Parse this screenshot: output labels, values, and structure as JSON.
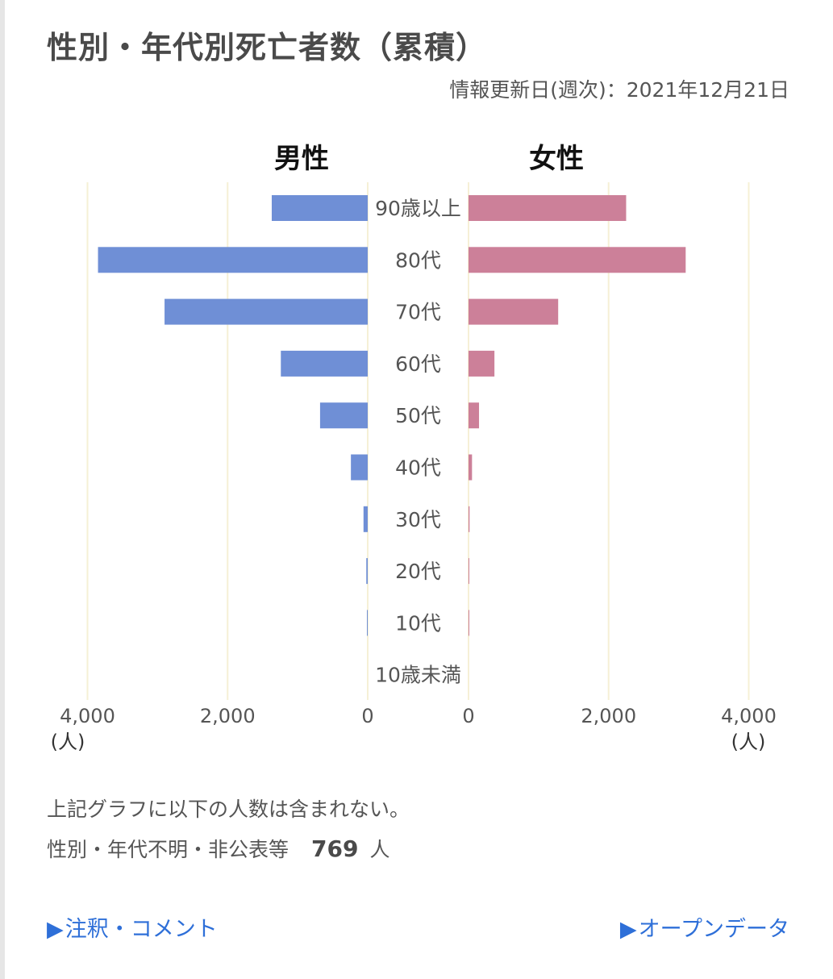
{
  "page": {
    "title": "性別・年代別死亡者数（累積）",
    "updated": "情報更新日(週次)：2021年12月21日"
  },
  "chart_data": {
    "type": "bar",
    "orientation": "horizontal-population-pyramid",
    "categories": [
      "90歳以上",
      "80代",
      "70代",
      "60代",
      "50代",
      "40代",
      "30代",
      "20代",
      "10代",
      "10歳未満"
    ],
    "series": [
      {
        "name": "男性",
        "color": "#6f8fd6",
        "values": [
          1370,
          3850,
          2900,
          1240,
          680,
          240,
          60,
          20,
          5,
          0
        ]
      },
      {
        "name": "女性",
        "color": "#cc8099",
        "values": [
          2250,
          3100,
          1280,
          370,
          150,
          50,
          15,
          10,
          2,
          0
        ]
      }
    ],
    "xlim": [
      0,
      4000
    ],
    "ticks": [
      "4,000",
      "2,000",
      "0"
    ],
    "ticks_right": [
      "0",
      "2,000",
      "4,000"
    ],
    "unit": "(人)",
    "grid_color": "#f6f0d6"
  },
  "notes": {
    "line1": "上記グラフに以下の人数は含まれない。",
    "line2_label": "性別・年代不明・非公表等",
    "line2_count": "769",
    "line2_unit": "人"
  },
  "links": {
    "arrow": "▶",
    "comments": "注釈・コメント",
    "opendata": "オープンデータ"
  }
}
